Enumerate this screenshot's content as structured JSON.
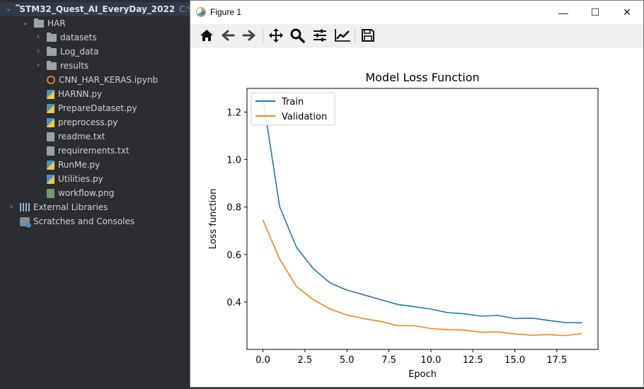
{
  "ide": {
    "project_name": "STM32_Quest_AI_EveryDay_2022",
    "project_path": "C:\\U",
    "tree": [
      {
        "label": "HAR",
        "kind": "folder",
        "depth": 1,
        "expanded": true
      },
      {
        "label": "datasets",
        "kind": "folder",
        "depth": 2,
        "expanded": false
      },
      {
        "label": "Log_data",
        "kind": "folder",
        "depth": 2,
        "expanded": false
      },
      {
        "label": "results",
        "kind": "folder",
        "depth": 2,
        "expanded": false
      },
      {
        "label": "CNN_HAR_KERAS.ipynb",
        "kind": "nb",
        "depth": 2
      },
      {
        "label": "HARNN.py",
        "kind": "py",
        "depth": 2
      },
      {
        "label": "PrepareDataset.py",
        "kind": "py",
        "depth": 2
      },
      {
        "label": "preprocess.py",
        "kind": "py",
        "depth": 2
      },
      {
        "label": "readme.txt",
        "kind": "txt",
        "depth": 2
      },
      {
        "label": "requirements.txt",
        "kind": "txt",
        "depth": 2
      },
      {
        "label": "RunMe.py",
        "kind": "py",
        "depth": 2
      },
      {
        "label": "Utilities.py",
        "kind": "py",
        "depth": 2
      },
      {
        "label": "workflow.png",
        "kind": "png",
        "depth": 2
      },
      {
        "label": "External Libraries",
        "kind": "lib",
        "depth": 0,
        "expanded": false
      },
      {
        "label": "Scratches and Consoles",
        "kind": "scratch",
        "depth": 0
      }
    ]
  },
  "figure_window": {
    "title": "Figure 1",
    "controls": {
      "minimize": "—",
      "maximize": "☐",
      "close": "✕"
    },
    "toolbar": [
      {
        "name": "home-icon",
        "glyph": "⌂"
      },
      {
        "name": "back-icon",
        "glyph": "←"
      },
      {
        "name": "forward-icon",
        "glyph": "→"
      },
      {
        "name": "pan-icon",
        "glyph": "✥"
      },
      {
        "name": "zoom-icon",
        "glyph": "🔍"
      },
      {
        "name": "subplots-icon",
        "glyph": "☰"
      },
      {
        "name": "edit-axis-icon",
        "glyph": "📈"
      },
      {
        "name": "save-icon",
        "glyph": "💾"
      }
    ]
  },
  "chart_data": {
    "type": "line",
    "title": "Model Loss Function",
    "xlabel": "Epoch",
    "ylabel": "Loss function",
    "xlim": [
      -0.95,
      19.95
    ],
    "ylim": [
      0.2,
      1.3
    ],
    "xticks": [
      0,
      2.5,
      5,
      7.5,
      10,
      12.5,
      15,
      17.5
    ],
    "xtick_labels": [
      "0.0",
      "2.5",
      "5.0",
      "7.5",
      "10.0",
      "12.5",
      "15.0",
      "17.5"
    ],
    "yticks": [
      0.4,
      0.6,
      0.8,
      1.0,
      1.2
    ],
    "ytick_labels": [
      "0.4",
      "0.6",
      "0.8",
      "1.0",
      "1.2"
    ],
    "legend_position": "upper-left",
    "grid": false,
    "x": [
      0,
      1,
      2,
      3,
      4,
      5,
      6,
      7,
      8,
      9,
      10,
      11,
      12,
      13,
      14,
      15,
      16,
      17,
      18,
      19
    ],
    "series": [
      {
        "name": "Train",
        "color": "#1f77b4",
        "values": [
          1.26,
          0.8,
          0.63,
          0.54,
          0.48,
          0.45,
          0.43,
          0.41,
          0.39,
          0.38,
          0.37,
          0.355,
          0.35,
          0.34,
          0.343,
          0.33,
          0.332,
          0.322,
          0.313,
          0.312
        ]
      },
      {
        "name": "Validation",
        "color": "#ff7f0e",
        "values": [
          0.745,
          0.58,
          0.465,
          0.41,
          0.37,
          0.345,
          0.33,
          0.318,
          0.3,
          0.3,
          0.288,
          0.283,
          0.281,
          0.272,
          0.274,
          0.265,
          0.26,
          0.262,
          0.258,
          0.267
        ]
      }
    ]
  }
}
